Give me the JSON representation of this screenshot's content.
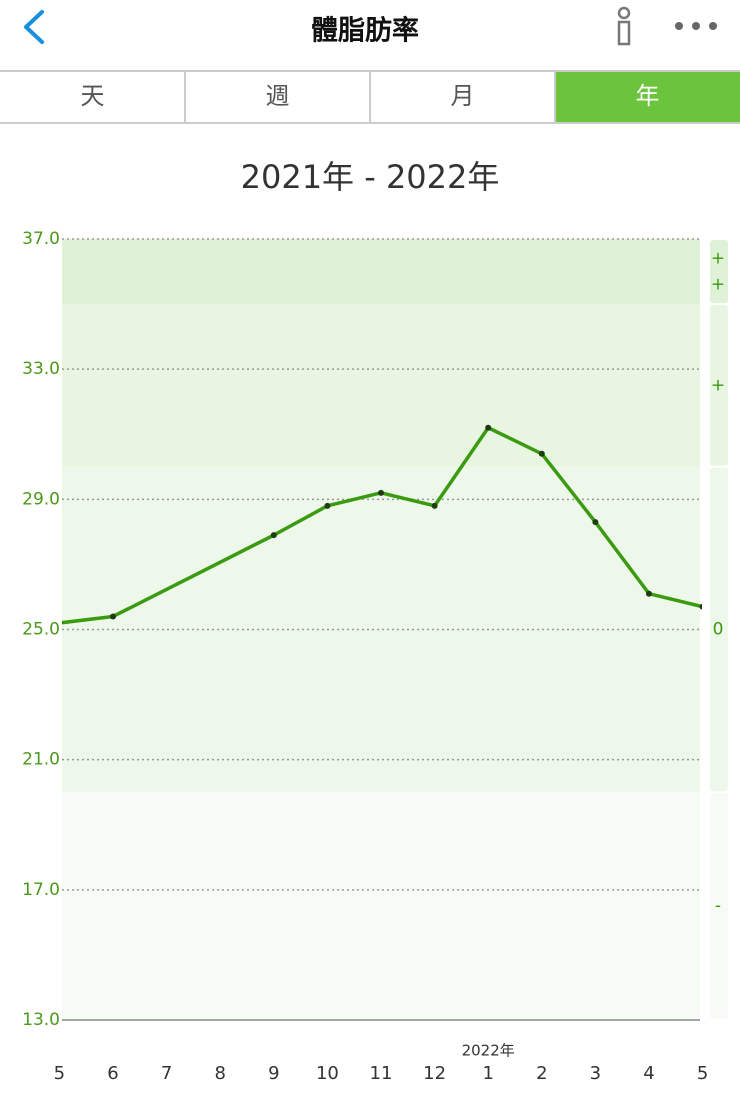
{
  "header": {
    "title": "體脂肪率"
  },
  "tabs": {
    "items": [
      "天",
      "週",
      "月",
      "年"
    ],
    "active": 3
  },
  "chart_data": {
    "type": "line",
    "title": "2021年 - 2022年",
    "categories": [
      "5",
      "6",
      "7",
      "8",
      "9",
      "10",
      "11",
      "12",
      "1",
      "2",
      "3",
      "4",
      "5"
    ],
    "x_annotation": {
      "text": "2022年",
      "category": 8
    },
    "series": [
      {
        "name": "體脂肪率",
        "color": "#3a9a10",
        "values": [
          25.2,
          25.4,
          null,
          null,
          27.9,
          28.8,
          29.2,
          28.8,
          31.2,
          30.4,
          28.3,
          26.1,
          25.7
        ]
      }
    ],
    "span_gaps": true,
    "ylim": [
      13,
      37
    ],
    "yticks": [
      {
        "value": 13,
        "label": "13.0"
      },
      {
        "value": 17,
        "label": "17.0"
      },
      {
        "value": 21,
        "label": "21.0"
      },
      {
        "value": 25,
        "label": "25.0"
      },
      {
        "value": 29,
        "label": "29.0"
      },
      {
        "value": 33,
        "label": "33.0"
      },
      {
        "value": 37,
        "label": "37.0"
      }
    ],
    "grid": true,
    "zones": [
      {
        "range": [
          35,
          37
        ],
        "labels": [
          "+",
          "+"
        ],
        "color": "#dff2d8"
      },
      {
        "range": [
          30,
          35
        ],
        "labels": [
          "+"
        ],
        "color": "#e7f5e1"
      },
      {
        "range": [
          20,
          30
        ],
        "labels": [
          "0"
        ],
        "color": "#eef8ea"
      },
      {
        "range": [
          13,
          20
        ],
        "labels": [
          "-"
        ],
        "color": "#f7fbf5"
      }
    ]
  }
}
